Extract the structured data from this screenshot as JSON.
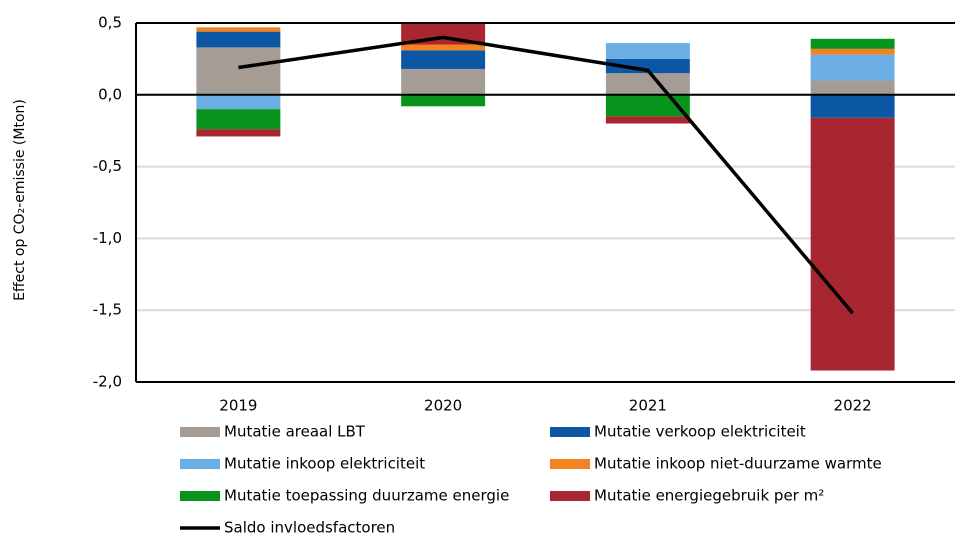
{
  "chart_data": {
    "type": "bar",
    "stacked": true,
    "y_label": "Effect op CO₂-emissie (Mton)",
    "categories": [
      "2019",
      "2020",
      "2021",
      "2022"
    ],
    "series": [
      {
        "name": "Mutatie areaal LBT",
        "color": "#a59d95",
        "values": [
          0.33,
          0.18,
          0.15,
          0.1
        ]
      },
      {
        "name": "Mutatie verkoop elektriciteit",
        "color": "#0b57a4",
        "values": [
          0.11,
          0.13,
          0.1,
          -0.16
        ]
      },
      {
        "name": "Mutatie inkoop elektriciteit",
        "color": "#6aaee3",
        "values": [
          -0.1,
          0,
          0.11,
          0.18
        ]
      },
      {
        "name": "Mutatie inkoop niet-duurzame warmte",
        "color": "#f58220",
        "values": [
          0.03,
          0.04,
          0,
          0.04
        ]
      },
      {
        "name": "Mutatie toepassing duurzame energie",
        "color": "#08931c",
        "values": [
          -0.14,
          -0.08,
          -0.15,
          0.07
        ]
      },
      {
        "name": "Mutatie energiegebruik per m²",
        "color": "#a8262f",
        "values": [
          -0.05,
          0.15,
          -0.05,
          -1.76
        ]
      },
      {
        "name": "Saldo invloedsfactoren",
        "color": "#000000",
        "type": "line",
        "values": [
          0.19,
          0.4,
          0.17,
          -1.52
        ]
      }
    ],
    "ylim": [
      -2.0,
      0.5
    ],
    "yticks": [
      {
        "value": -2.0,
        "label": "-2,0"
      },
      {
        "value": -1.5,
        "label": "-1,5"
      },
      {
        "value": -1.0,
        "label": "-1,0"
      },
      {
        "value": -0.5,
        "label": "-0,5"
      },
      {
        "value": 0,
        "label": "0,0"
      },
      {
        "value": 0.5,
        "label": "0,5"
      }
    ],
    "grid": true,
    "legend": "bottom"
  }
}
